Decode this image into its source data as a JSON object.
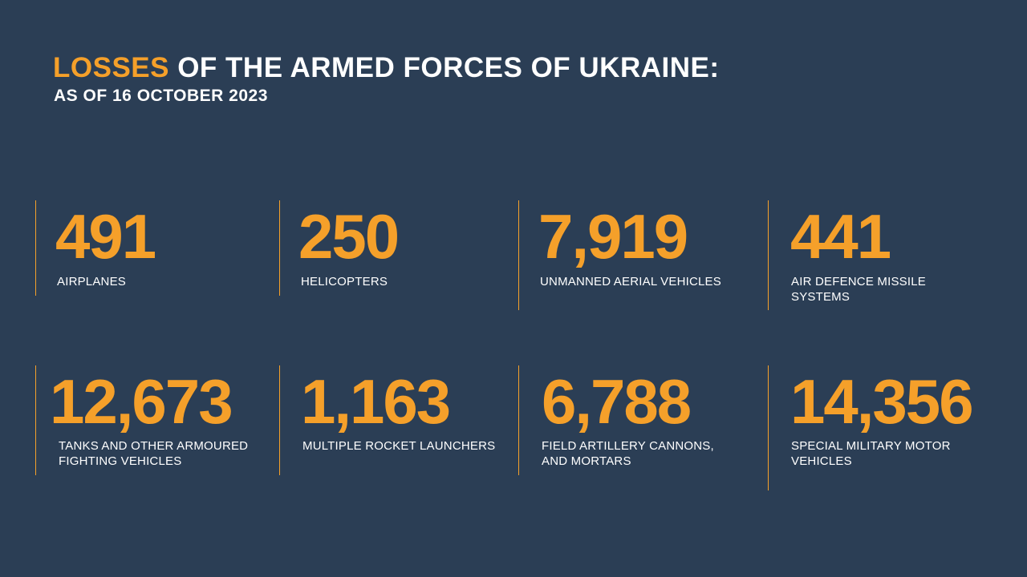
{
  "header": {
    "title_accent": "LOSSES",
    "title_rest": " OF THE ARMED FORCES OF UKRAINE:",
    "subtitle": "AS OF 16 OCTOBER 2023"
  },
  "colors": {
    "background": "#2b3e55",
    "accent": "#f5a02a",
    "text": "#ffffff"
  },
  "stats": [
    {
      "value": "491",
      "label": "AIRPLANES"
    },
    {
      "value": "250",
      "label": "HELICOPTERS"
    },
    {
      "value": "7,919",
      "label": "UNMANNED AERIAL VEHICLES"
    },
    {
      "value": "441",
      "label": "AIR DEFENCE MISSILE SYSTEMS"
    },
    {
      "value": "12,673",
      "label": "TANKS AND OTHER ARMOURED FIGHTING VEHICLES"
    },
    {
      "value": "1,163",
      "label": "MULTIPLE ROCKET LAUNCHERS"
    },
    {
      "value": "6,788",
      "label": "FIELD ARTILLERY CANNONS, AND MORTARS"
    },
    {
      "value": "14,356",
      "label": "SPECIAL MILITARY MOTOR VEHICLES"
    }
  ]
}
